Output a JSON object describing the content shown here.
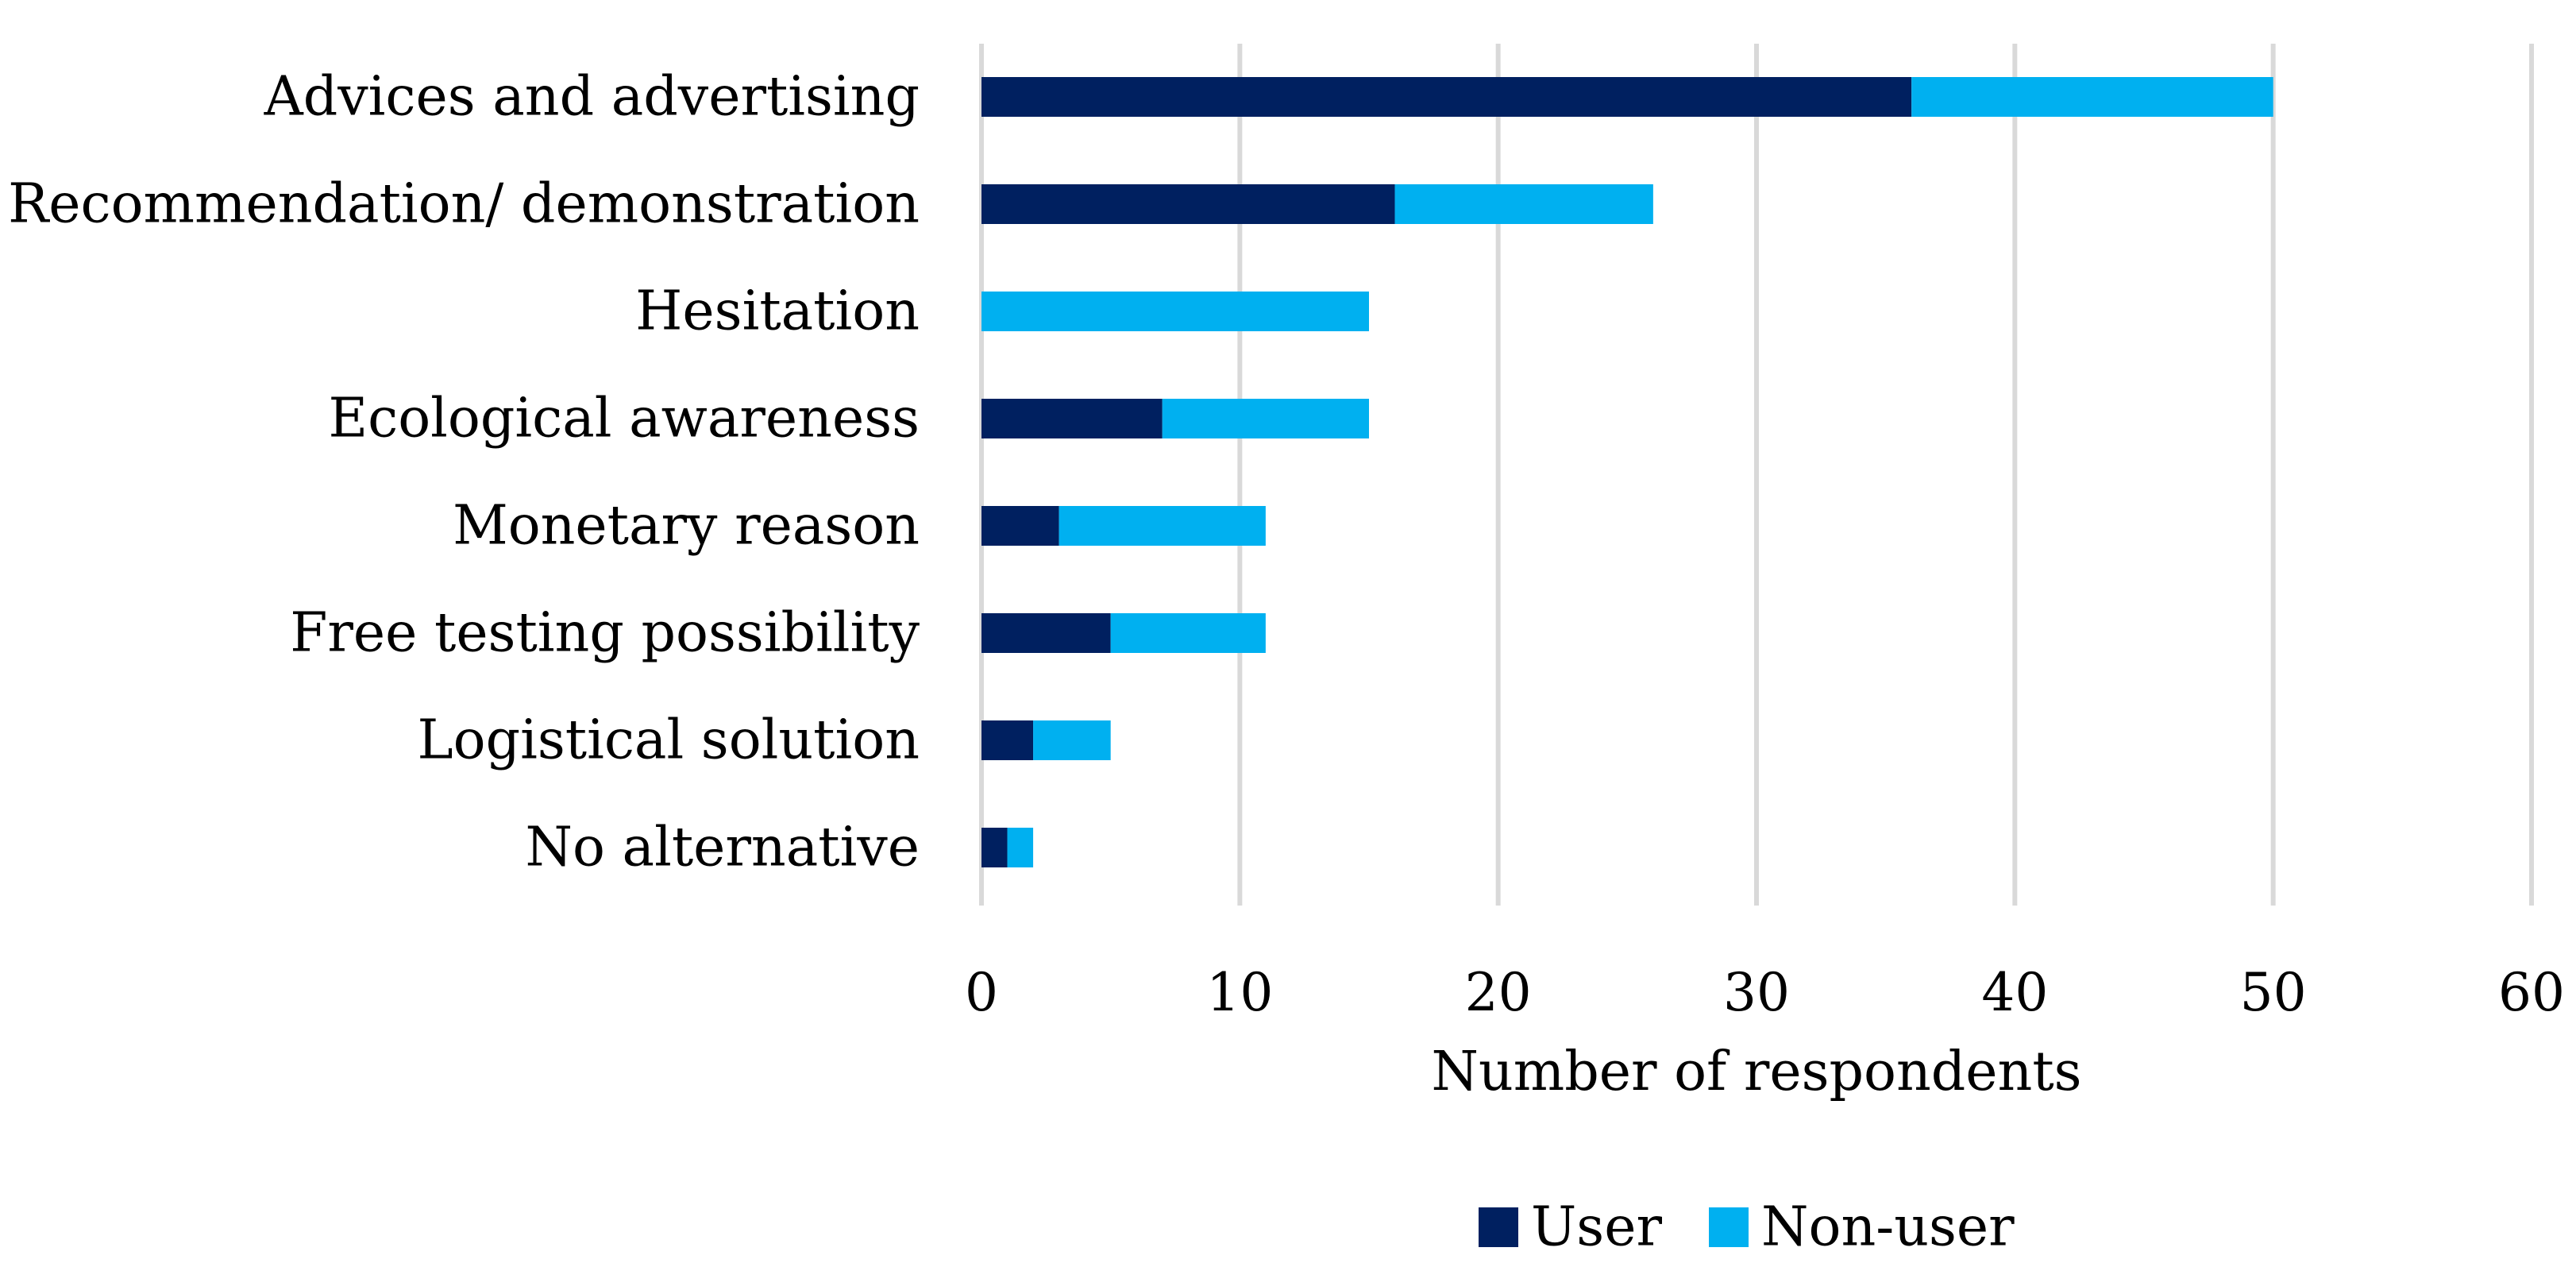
{
  "chart_data": {
    "type": "bar",
    "orientation": "horizontal",
    "stacked": true,
    "title": "",
    "categories": [
      "Advices and advertising",
      "Recommendation/ demonstration",
      "Hesitation",
      "Ecological awareness",
      "Monetary reason",
      "Free testing possibility",
      "Logistical solution",
      "No alternative"
    ],
    "series": [
      {
        "name": "User",
        "color": "#002060",
        "values": [
          36,
          16,
          0,
          7,
          3,
          5,
          2,
          1
        ]
      },
      {
        "name": "Non-user",
        "color": "#00B0F0",
        "values": [
          14,
          10,
          15,
          8,
          8,
          6,
          3,
          1
        ]
      }
    ],
    "xlabel": "Number of respondents",
    "ylabel": "",
    "xlim": [
      0,
      60
    ],
    "xticks": [
      "0",
      "10",
      "20",
      "30",
      "40",
      "50",
      "60"
    ],
    "grid": true,
    "legend": "bottom"
  }
}
